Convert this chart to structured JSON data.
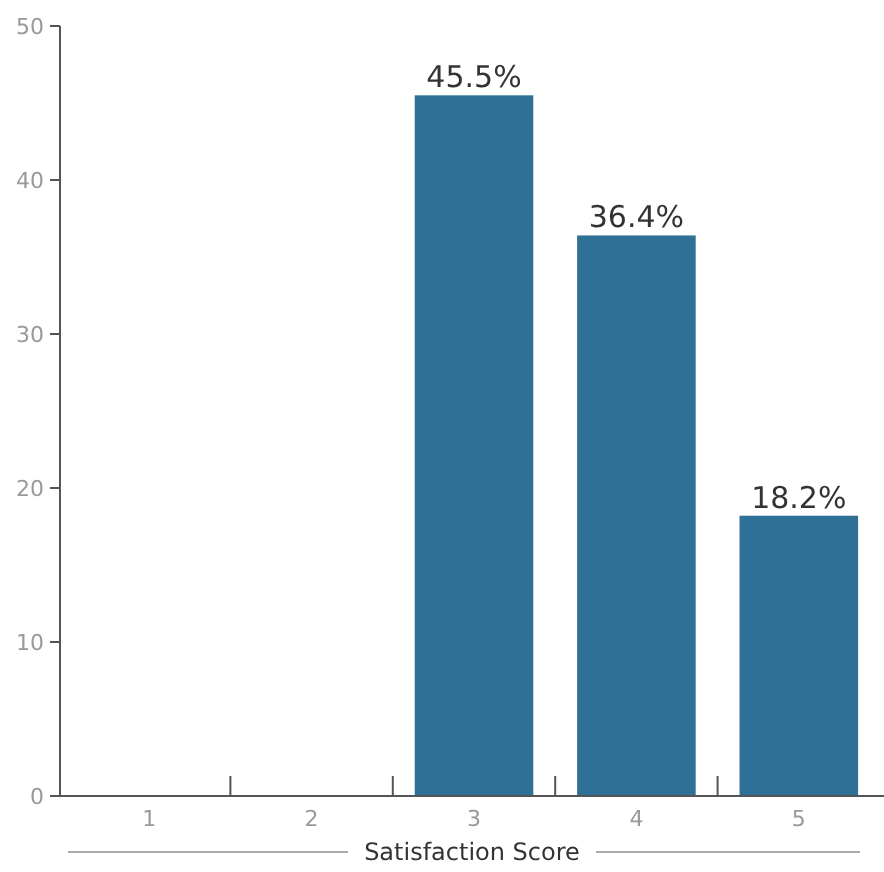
{
  "chart_data": {
    "type": "bar",
    "xlabel": "Satisfaction Score",
    "categories": [
      "1",
      "2",
      "3",
      "4",
      "5"
    ],
    "values": [
      0,
      0,
      45.5,
      36.4,
      18.2
    ],
    "value_labels": [
      null,
      null,
      "45.5%",
      "36.4%",
      "18.2%"
    ],
    "color": "#2f7096",
    "ylim": [
      0,
      50
    ],
    "yticks": [
      0,
      10,
      20,
      30,
      40,
      50
    ],
    "grid": false
  }
}
